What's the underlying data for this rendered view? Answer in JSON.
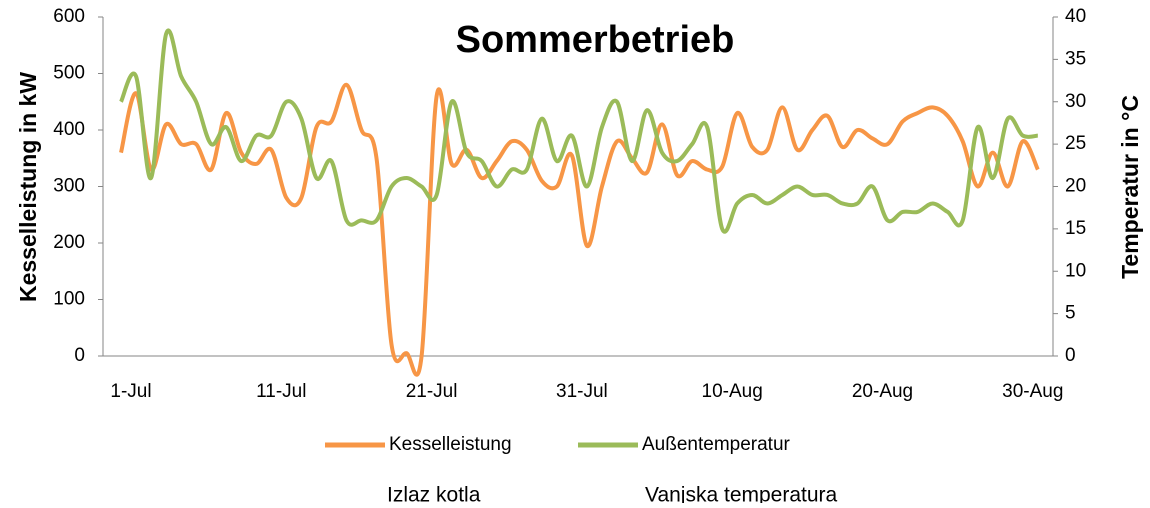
{
  "chart_data": {
    "type": "line",
    "title": "Sommerbetrieb",
    "ylabel": "Kesselleistung in kW",
    "y2label": "Temperatur in °C",
    "categories": [
      "1-Jul",
      null,
      null,
      null,
      null,
      null,
      null,
      null,
      null,
      null,
      "11-Jul",
      null,
      null,
      null,
      null,
      null,
      null,
      null,
      null,
      null,
      "21-Jul",
      null,
      null,
      null,
      null,
      null,
      null,
      null,
      null,
      null,
      "31-Jul",
      null,
      null,
      null,
      null,
      null,
      null,
      null,
      null,
      null,
      "10-Aug",
      null,
      null,
      null,
      null,
      null,
      null,
      null,
      null,
      null,
      "20-Aug",
      null,
      null,
      null,
      null,
      null,
      null,
      null,
      null,
      null,
      "30-Aug",
      null
    ],
    "series": [
      {
        "name": "Kesselleistung",
        "color": "#f79646",
        "axis": "y",
        "values": [
          360,
          465,
          330,
          410,
          375,
          375,
          330,
          430,
          360,
          340,
          365,
          280,
          280,
          405,
          415,
          480,
          400,
          350,
          20,
          5,
          0,
          460,
          340,
          365,
          315,
          345,
          380,
          365,
          310,
          300,
          355,
          195,
          300,
          380,
          350,
          325,
          410,
          320,
          345,
          330,
          335,
          430,
          370,
          365,
          440,
          365,
          400,
          425,
          370,
          400,
          385,
          375,
          415,
          430,
          440,
          425,
          380,
          300,
          360,
          300,
          380,
          330
        ]
      },
      {
        "name": "Außentemperatur",
        "color": "#9bbb59",
        "axis": "y2",
        "values": [
          30,
          33,
          21,
          38,
          33,
          30,
          25,
          27,
          23,
          26,
          26,
          30,
          28,
          21,
          23,
          16,
          16,
          16,
          20,
          21,
          20,
          19,
          30,
          24,
          23,
          20,
          22,
          22,
          28,
          23,
          26,
          20,
          27,
          30,
          23,
          29,
          24,
          23,
          25,
          27,
          15,
          18,
          19,
          18,
          19,
          20,
          19,
          19,
          18,
          18,
          20,
          16,
          17,
          17,
          18,
          17,
          16,
          27,
          21,
          28,
          26,
          26
        ]
      }
    ],
    "legend_subtitles": [
      "Izlaz kotla",
      "Vanjska temperatura"
    ],
    "ylim": [
      0,
      600
    ],
    "yticks": [
      0,
      100,
      200,
      300,
      400,
      500,
      600
    ],
    "y2lim": [
      0,
      40
    ],
    "y2ticks": [
      0,
      5,
      10,
      15,
      20,
      25,
      30,
      35,
      40
    ],
    "grid": false
  }
}
